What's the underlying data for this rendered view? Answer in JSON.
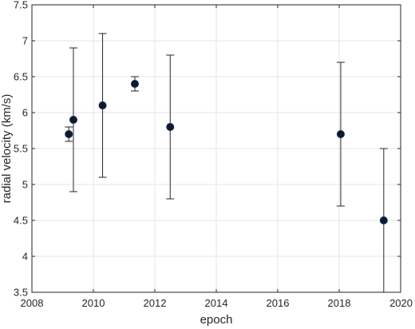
{
  "chart_data": {
    "type": "scatter",
    "title": "",
    "xlabel": "epoch",
    "ylabel": "radial velocity (km/s)",
    "xlim": [
      2008,
      2020
    ],
    "ylim": [
      3.5,
      7.5
    ],
    "x_ticks": [
      "2008",
      "2010",
      "2012",
      "2014",
      "2016",
      "2018",
      "2020"
    ],
    "y_ticks": [
      "3.5",
      "4",
      "4.5",
      "5",
      "5.5",
      "6",
      "6.5",
      "7",
      "7.5"
    ],
    "grid": true,
    "legend": "none",
    "marker_color": "#0a1a33",
    "points": [
      {
        "x": 2009.2,
        "y": 5.7,
        "err": 0.1
      },
      {
        "x": 2009.35,
        "y": 5.9,
        "err": 1.0
      },
      {
        "x": 2010.3,
        "y": 6.1,
        "err": 1.0
      },
      {
        "x": 2011.35,
        "y": 6.4,
        "err": 0.1
      },
      {
        "x": 2012.5,
        "y": 5.8,
        "err": 1.0
      },
      {
        "x": 2018.05,
        "y": 5.7,
        "err": 1.0
      },
      {
        "x": 2019.45,
        "y": 4.5,
        "err": 1.0
      }
    ]
  }
}
